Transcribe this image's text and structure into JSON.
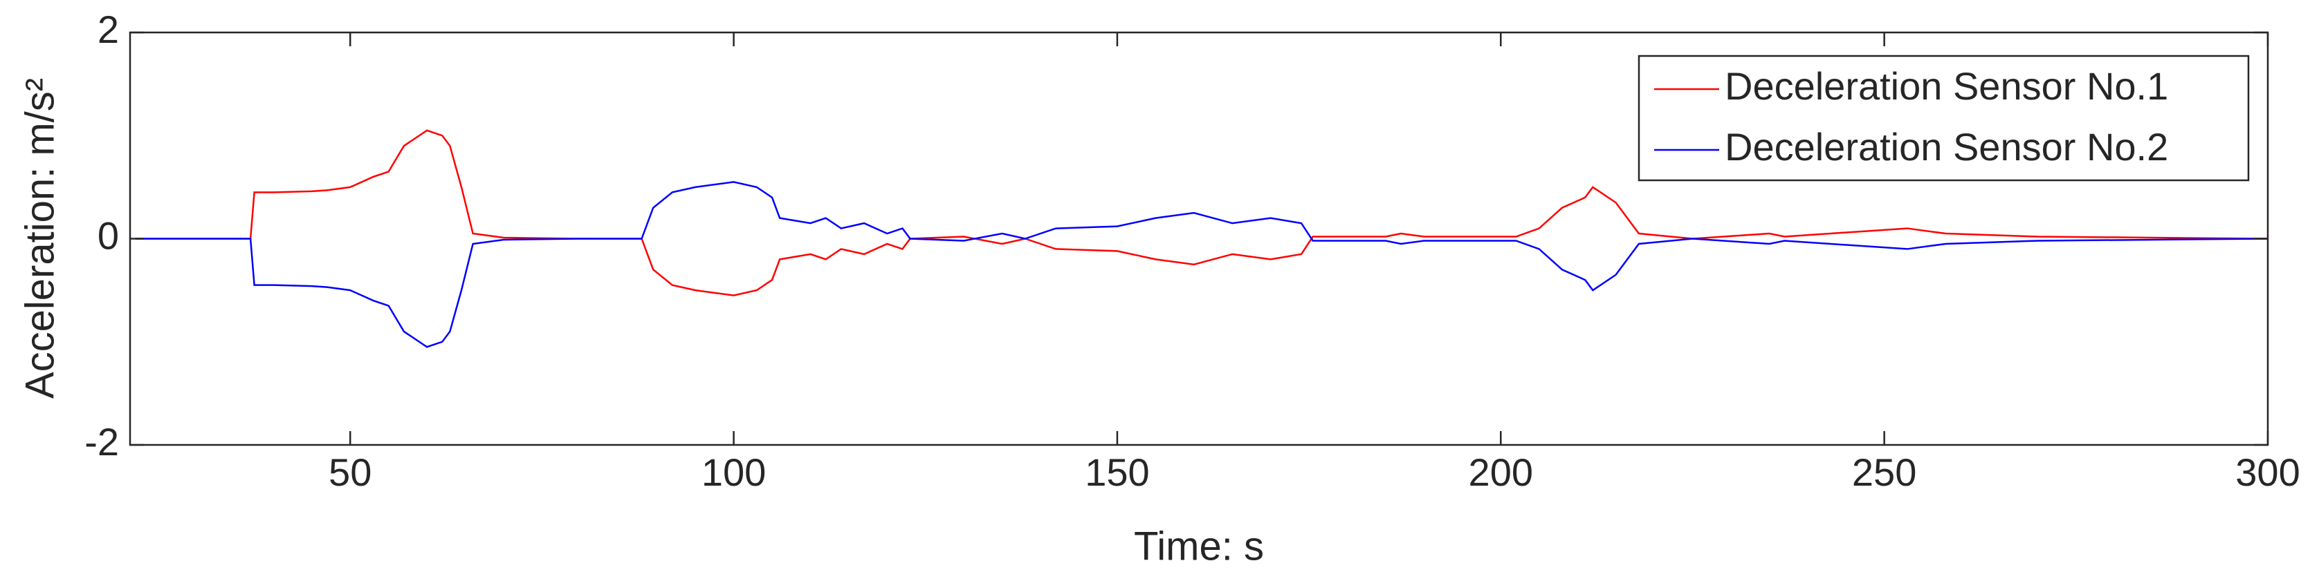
{
  "chart_data": {
    "type": "line",
    "x_label": "Time: s",
    "y_label": "Acceleration: m/s²",
    "x": [
      22,
      37,
      37.5,
      40,
      45,
      47,
      50,
      53,
      55,
      57,
      59,
      60,
      62,
      63,
      64.5,
      66,
      70,
      80,
      88,
      89.5,
      92,
      95,
      100,
      103,
      105,
      106,
      110,
      112,
      114,
      117,
      120,
      122,
      123,
      130,
      135,
      138,
      142,
      150,
      155,
      160,
      165,
      170,
      174,
      175.5,
      185,
      187,
      190,
      202,
      205,
      208,
      211,
      212,
      215,
      218,
      225,
      235,
      237,
      253,
      258,
      270,
      300
    ],
    "series": [
      {
        "name": "Deceleration Sensor No.1",
        "color": "#ff0000",
        "values": [
          0,
          0,
          0.45,
          0.45,
          0.46,
          0.47,
          0.5,
          0.6,
          0.65,
          0.9,
          1.0,
          1.05,
          1.0,
          0.9,
          0.5,
          0.05,
          0.01,
          0,
          0,
          -0.3,
          -0.45,
          -0.5,
          -0.55,
          -0.5,
          -0.4,
          -0.2,
          -0.15,
          -0.2,
          -0.1,
          -0.15,
          -0.05,
          -0.1,
          0,
          0.02,
          -0.05,
          0,
          -0.1,
          -0.12,
          -0.2,
          -0.25,
          -0.15,
          -0.2,
          -0.15,
          0.02,
          0.02,
          0.05,
          0.02,
          0.02,
          0.1,
          0.3,
          0.4,
          0.5,
          0.35,
          0.05,
          0,
          0.05,
          0.02,
          0.1,
          0.05,
          0.02,
          0
        ]
      },
      {
        "name": "Deceleration Sensor No.2",
        "color": "#0000ff",
        "values": [
          0,
          0,
          -0.45,
          -0.45,
          -0.46,
          -0.47,
          -0.5,
          -0.6,
          -0.65,
          -0.9,
          -1.0,
          -1.05,
          -1.0,
          -0.9,
          -0.5,
          -0.05,
          -0.01,
          0,
          0,
          0.3,
          0.45,
          0.5,
          0.55,
          0.5,
          0.4,
          0.2,
          0.15,
          0.2,
          0.1,
          0.15,
          0.05,
          0.1,
          0,
          -0.02,
          0.05,
          0,
          0.1,
          0.12,
          0.2,
          0.25,
          0.15,
          0.2,
          0.15,
          -0.02,
          -0.02,
          -0.05,
          -0.02,
          -0.02,
          -0.1,
          -0.3,
          -0.4,
          -0.5,
          -0.35,
          -0.05,
          0,
          -0.05,
          -0.02,
          -0.1,
          -0.05,
          -0.02,
          0
        ]
      }
    ],
    "xlim": [
      21.3,
      300
    ],
    "xticks": [
      50,
      100,
      150,
      200,
      250,
      300
    ],
    "ylim": [
      -2,
      2
    ],
    "yticks": [
      -2,
      0,
      2
    ],
    "grid": false,
    "legend": "upper right"
  }
}
